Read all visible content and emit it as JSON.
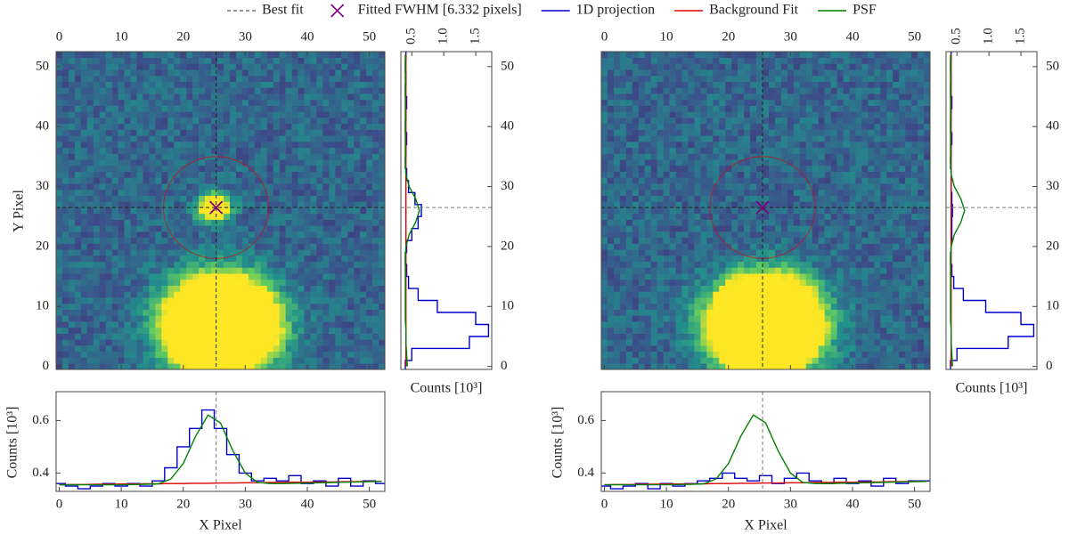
{
  "chart_data": {
    "type": "image_projection",
    "legend": [
      {
        "name": "Best fit",
        "color": "#777777",
        "style": "dashed"
      },
      {
        "name": "Fitted FWHM [6.332 pixels]",
        "color": "#800080",
        "marker": "x"
      },
      {
        "name": "1D projection",
        "color": "#0000cc"
      },
      {
        "name": "Background Fit",
        "color": "#dd0000"
      },
      {
        "name": "PSF",
        "color": "#008000"
      }
    ],
    "panels": [
      {
        "best_fit": {
          "x": 25.3,
          "y": 26.5
        },
        "aperture_radius": 8.5,
        "image": {
          "type": "image",
          "xlim": [
            -0.5,
            52.5
          ],
          "ylim": [
            -0.5,
            52.5
          ],
          "xticks": [
            0,
            10,
            20,
            30,
            40,
            50
          ],
          "yticks": [
            0,
            10,
            20,
            30,
            40,
            50
          ],
          "ylabel": "Y Pixel",
          "sources": [
            {
              "x": 26,
              "y": 7,
              "sx": 5,
              "sy": 4.5,
              "peak": 4
            },
            {
              "x": 25,
              "y": 26.5,
              "sx": 1.8,
              "sy": 1.5,
              "peak": 1.2
            }
          ]
        },
        "xproj": {
          "type": "line",
          "xlabel": "X Pixel",
          "ylabel": "Counts [10³]",
          "xlim": [
            -0.5,
            52.5
          ],
          "ylim": [
            0.33,
            0.71
          ],
          "xticks": [
            0,
            10,
            20,
            30,
            40,
            50
          ],
          "yticks": [
            0.4,
            0.6
          ],
          "x": [
            0,
            2,
            4,
            6,
            8,
            10,
            12,
            14,
            16,
            18,
            20,
            22,
            24,
            26,
            28,
            30,
            32,
            34,
            36,
            38,
            40,
            42,
            44,
            46,
            48,
            50,
            52
          ],
          "series": [
            {
              "color": "#0000cc",
              "drawstyle": "steps-mid",
              "values": [
                0.36,
                0.35,
                0.34,
                0.35,
                0.36,
                0.35,
                0.36,
                0.35,
                0.37,
                0.42,
                0.5,
                0.57,
                0.64,
                0.57,
                0.47,
                0.4,
                0.37,
                0.38,
                0.37,
                0.39,
                0.36,
                0.37,
                0.35,
                0.38,
                0.35,
                0.37,
                0.36
              ]
            },
            {
              "color": "#dd0000",
              "values": [
                0.355,
                0.356,
                0.356,
                0.357,
                0.357,
                0.358,
                0.358,
                0.359,
                0.359,
                0.36,
                0.36,
                0.361,
                0.361,
                0.362,
                0.362,
                0.363,
                0.363,
                0.364,
                0.364,
                0.365,
                0.365,
                0.366,
                0.366,
                0.367,
                0.367,
                0.368,
                0.368
              ]
            },
            {
              "color": "#008000",
              "values": [
                0.355,
                0.355,
                0.355,
                0.355,
                0.355,
                0.355,
                0.356,
                0.357,
                0.359,
                0.377,
                0.436,
                0.541,
                0.621,
                0.591,
                0.485,
                0.4,
                0.364,
                0.36,
                0.36,
                0.361,
                0.362,
                0.363,
                0.364,
                0.365,
                0.366,
                0.367,
                0.368
              ]
            }
          ]
        },
        "yproj": {
          "type": "line",
          "xlabel": "Counts [10³]",
          "xlim": [
            0.33,
            1.75
          ],
          "ylim": [
            -0.5,
            52.5
          ],
          "xticks": [
            0.5,
            {
              "value": 1,
              "label": "1.0"
            },
            1.5
          ],
          "yticks": [
            0,
            10,
            20,
            30,
            40,
            50
          ],
          "y": [
            0,
            2,
            4,
            6,
            8,
            10,
            12,
            14,
            16,
            18,
            20,
            22,
            24,
            26,
            28,
            30,
            32,
            34,
            36,
            38,
            40,
            42,
            44,
            46,
            48,
            50,
            52
          ],
          "series": [
            {
              "color": "#0000cc",
              "drawstyle": "steps-mid",
              "values": [
                0.4,
                0.5,
                1.4,
                1.7,
                1.5,
                0.9,
                0.6,
                0.45,
                0.42,
                0.4,
                0.42,
                0.5,
                0.6,
                0.65,
                0.55,
                0.45,
                0.42,
                0.4,
                0.41,
                0.42,
                0.4,
                0.41,
                0.42,
                0.4,
                0.41,
                0.4,
                0.41
              ]
            },
            {
              "color": "#dd0000",
              "values": [
                0.41,
                0.41,
                0.41,
                0.41,
                0.41,
                0.41,
                0.41,
                0.41,
                0.41,
                0.41,
                0.41,
                0.41,
                0.41,
                0.41,
                0.41,
                0.41,
                0.41,
                0.41,
                0.41,
                0.41,
                0.41,
                0.41,
                0.41,
                0.41,
                0.41,
                0.41,
                0.41
              ]
            },
            {
              "color": "#008000",
              "values": [
                0.43,
                0.42,
                0.41,
                0.41,
                0.4,
                0.4,
                0.4,
                0.4,
                0.4,
                0.4,
                0.41,
                0.46,
                0.56,
                0.62,
                0.56,
                0.46,
                0.41,
                0.4,
                0.4,
                0.4,
                0.4,
                0.4,
                0.4,
                0.4,
                0.4,
                0.4,
                0.4
              ]
            }
          ]
        }
      },
      {
        "best_fit": {
          "x": 25.5,
          "y": 26.5
        },
        "aperture_radius": 8.5,
        "image": {
          "type": "image",
          "xlim": [
            -0.5,
            52.5
          ],
          "ylim": [
            -0.5,
            52.5
          ],
          "xticks": [
            0,
            10,
            20,
            30,
            40,
            50
          ],
          "sources": [
            {
              "x": 26,
              "y": 7,
              "sx": 5,
              "sy": 4.5,
              "peak": 4
            }
          ]
        },
        "xproj": {
          "type": "line",
          "xlabel": "X Pixel",
          "ylabel": "Counts [10³]",
          "xlim": [
            -0.5,
            52.5
          ],
          "ylim": [
            0.33,
            0.71
          ],
          "xticks": [
            0,
            10,
            20,
            30,
            40,
            50
          ],
          "yticks": [
            0.4,
            0.6
          ],
          "x": [
            0,
            2,
            4,
            6,
            8,
            10,
            12,
            14,
            16,
            18,
            20,
            22,
            24,
            26,
            28,
            30,
            32,
            34,
            36,
            38,
            40,
            42,
            44,
            46,
            48,
            50,
            52
          ],
          "series": [
            {
              "color": "#0000cc",
              "drawstyle": "steps-mid",
              "values": [
                0.35,
                0.34,
                0.35,
                0.36,
                0.34,
                0.36,
                0.35,
                0.36,
                0.37,
                0.38,
                0.4,
                0.38,
                0.37,
                0.39,
                0.36,
                0.38,
                0.4,
                0.37,
                0.36,
                0.38,
                0.36,
                0.37,
                0.35,
                0.38,
                0.36,
                0.37,
                0.37
              ]
            },
            {
              "color": "#dd0000",
              "values": [
                0.355,
                0.356,
                0.356,
                0.357,
                0.357,
                0.358,
                0.358,
                0.359,
                0.359,
                0.36,
                0.36,
                0.361,
                0.361,
                0.362,
                0.362,
                0.363,
                0.363,
                0.364,
                0.364,
                0.365,
                0.365,
                0.366,
                0.366,
                0.367,
                0.367,
                0.368,
                0.368
              ]
            },
            {
              "color": "#008000",
              "values": [
                0.355,
                0.355,
                0.355,
                0.355,
                0.355,
                0.355,
                0.356,
                0.357,
                0.359,
                0.377,
                0.436,
                0.541,
                0.621,
                0.591,
                0.485,
                0.4,
                0.364,
                0.36,
                0.36,
                0.361,
                0.362,
                0.363,
                0.364,
                0.365,
                0.366,
                0.367,
                0.368
              ]
            }
          ]
        },
        "yproj": {
          "type": "line",
          "xlabel": "Counts [10³]",
          "xlim": [
            0.33,
            1.75
          ],
          "ylim": [
            -0.5,
            52.5
          ],
          "xticks": [
            0.5,
            {
              "value": 1,
              "label": "1.0"
            },
            1.5
          ],
          "yticks": [
            0,
            10,
            20,
            30,
            40,
            50
          ],
          "y": [
            0,
            2,
            4,
            6,
            8,
            10,
            12,
            14,
            16,
            18,
            20,
            22,
            24,
            26,
            28,
            30,
            32,
            34,
            36,
            38,
            40,
            42,
            44,
            46,
            48,
            50,
            52
          ],
          "series": [
            {
              "color": "#0000cc",
              "drawstyle": "steps-mid",
              "values": [
                0.4,
                0.5,
                1.3,
                1.7,
                1.5,
                0.95,
                0.6,
                0.45,
                0.42,
                0.4,
                0.41,
                0.42,
                0.42,
                0.43,
                0.42,
                0.41,
                0.41,
                0.4,
                0.41,
                0.42,
                0.4,
                0.41,
                0.42,
                0.4,
                0.41,
                0.4,
                0.41
              ]
            },
            {
              "color": "#dd0000",
              "values": [
                0.41,
                0.41,
                0.41,
                0.41,
                0.41,
                0.41,
                0.41,
                0.41,
                0.41,
                0.41,
                0.41,
                0.41,
                0.41,
                0.41,
                0.41,
                0.41,
                0.41,
                0.41,
                0.41,
                0.41,
                0.41,
                0.41,
                0.41,
                0.41,
                0.41,
                0.41,
                0.41
              ]
            },
            {
              "color": "#008000",
              "values": [
                0.43,
                0.42,
                0.41,
                0.41,
                0.4,
                0.4,
                0.4,
                0.4,
                0.4,
                0.4,
                0.41,
                0.46,
                0.56,
                0.62,
                0.56,
                0.46,
                0.41,
                0.4,
                0.4,
                0.4,
                0.4,
                0.4,
                0.4,
                0.4,
                0.4,
                0.4,
                0.4
              ]
            }
          ]
        }
      }
    ]
  }
}
